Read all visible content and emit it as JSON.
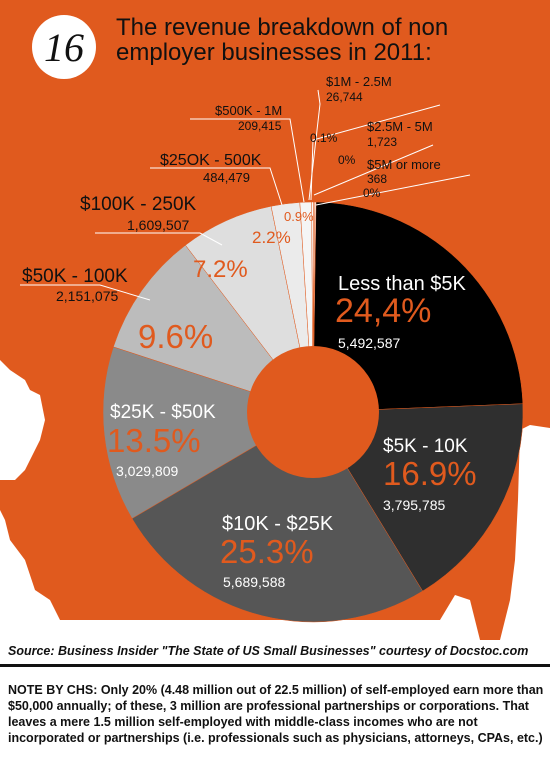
{
  "badge": "16",
  "title": "The revenue breakdown of non employer businesses in 2011:",
  "colors": {
    "orange": "#e05a1e",
    "black": "#111111",
    "white": "#ffffff"
  },
  "chart_data": {
    "type": "pie",
    "style": "donut",
    "slices": [
      {
        "label": "Less than $5K",
        "pct_label": "24,4%",
        "count_label": "5,492,587",
        "value": 24.4,
        "color": "#000000"
      },
      {
        "label": "$5K - 10K",
        "pct_label": "16.9%",
        "count_label": "3,795,785",
        "value": 16.9,
        "color": "#2f2f2f"
      },
      {
        "label": "$10K - $25K",
        "pct_label": "25.3%",
        "count_label": "5,689,588",
        "value": 25.3,
        "color": "#565656"
      },
      {
        "label": "$25K - $50K",
        "pct_label": "13.5%",
        "count_label": "3,029,809",
        "value": 13.5,
        "color": "#8a8a8a"
      },
      {
        "label": "$50K - 100K",
        "pct_label": "9.6%",
        "count_label": "2,151,075",
        "value": 9.6,
        "color": "#bcbcbc"
      },
      {
        "label": "$100K - 250K",
        "pct_label": "7.2%",
        "count_label": "1,609,507",
        "value": 7.2,
        "color": "#dedede"
      },
      {
        "label": "$25OK - 500K",
        "pct_label": "2.2%",
        "count_label": "484,479",
        "value": 2.2,
        "color": "#ebebeb"
      },
      {
        "label": "$500K - 1M",
        "pct_label": "0.9%",
        "count_label": "209,415",
        "value": 0.9,
        "color": "#f5f5f5"
      },
      {
        "label": "$1M - 2.5M",
        "pct_label": "0.1%",
        "count_label": "26,744",
        "value": 0.1,
        "color": "#fafafa"
      },
      {
        "label": "$2.5M - 5M",
        "pct_label": "0%",
        "count_label": "1,723",
        "value": 0.0,
        "color": "#ffffff"
      },
      {
        "label": "$5M or more",
        "pct_label": "0%",
        "count_label": "368",
        "value": 0.0,
        "color": "#ffffff"
      }
    ]
  },
  "source": "Source: Business Insider \"The State of US Small Businesses\"  courtesy of Docstoc.com",
  "note": "NOTE BY CHS: Only 20% (4.48 million out of 22.5 million) of self-employed earn more than $50,000 annually; of these, 3 million are professional partnerships or corporations. That leaves a mere 1.5 million self-employed with middle-class incomes who are not incorporated or partnerships (i.e. professionals such as physicians, attorneys, CPAs, etc.)"
}
